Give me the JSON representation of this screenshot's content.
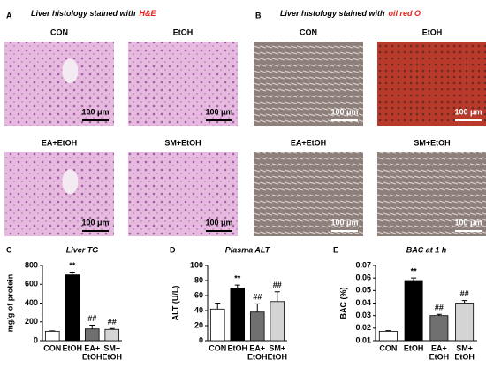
{
  "panels": [
    {
      "letter": "A",
      "title": "Liver histology stained with",
      "stain": "H&E",
      "images": [
        {
          "label": "CON",
          "scale": "100 μm"
        },
        {
          "label": "EtOH",
          "scale": "100 μm"
        },
        {
          "label": "EA+EtOH",
          "scale": "100 μm"
        },
        {
          "label": "SM+EtOH",
          "scale": "100 μm"
        }
      ]
    },
    {
      "letter": "B",
      "title": "Liver histology stained with",
      "stain": "oil red O",
      "images": [
        {
          "label": "CON",
          "scale": "100 μm"
        },
        {
          "label": "EtOH",
          "scale": "100 μm"
        },
        {
          "label": "EA+EtOH",
          "scale": "100 μm"
        },
        {
          "label": "SM+EtOH",
          "scale": "100 μm"
        }
      ]
    }
  ],
  "chart_data": [
    {
      "type": "bar",
      "letter": "C",
      "title": "Liver TG",
      "ylabel": "mg/g of protein",
      "categories": [
        [
          "CON"
        ],
        [
          "EtOH"
        ],
        [
          "EA+",
          "EtOH"
        ],
        [
          "SM+",
          "EtOH"
        ]
      ],
      "values": [
        100,
        700,
        125,
        120
      ],
      "errors": [
        5,
        30,
        40,
        10
      ],
      "annotations": [
        null,
        "**",
        "##",
        "##"
      ],
      "colors": [
        "#ffffff",
        "#000000",
        "#707070",
        "#d4d4d4"
      ],
      "ylim": [
        0,
        800
      ],
      "yticks": [
        0,
        200,
        400,
        600,
        800
      ]
    },
    {
      "type": "bar",
      "letter": "D",
      "title": "Plasma ALT",
      "ylabel": "ALT (U/L)",
      "categories": [
        [
          "CON"
        ],
        [
          "EtOH"
        ],
        [
          "EA+",
          "EtOH"
        ],
        [
          "SM+",
          "EtOH"
        ]
      ],
      "values": [
        42,
        70,
        38,
        52
      ],
      "errors": [
        8,
        4,
        11,
        13
      ],
      "annotations": [
        null,
        "**",
        "##",
        "##"
      ],
      "colors": [
        "#ffffff",
        "#000000",
        "#707070",
        "#d4d4d4"
      ],
      "ylim": [
        0,
        100
      ],
      "yticks": [
        0,
        20,
        40,
        60,
        80,
        100
      ]
    },
    {
      "type": "bar",
      "letter": "E",
      "title": "BAC at 1 h",
      "ylabel": "BAC (%)",
      "categories": [
        [
          "CON"
        ],
        [
          "EtOH"
        ],
        [
          "EA+",
          "EtOH"
        ],
        [
          "SM+",
          "EtOH"
        ]
      ],
      "values": [
        0.0175,
        0.058,
        0.03,
        0.04
      ],
      "errors": [
        0.0005,
        0.002,
        0.001,
        0.002
      ],
      "annotations": [
        null,
        "**",
        "##",
        "##"
      ],
      "colors": [
        "#ffffff",
        "#000000",
        "#707070",
        "#d4d4d4"
      ],
      "ylim": [
        0.01,
        0.07
      ],
      "yticks": [
        0.01,
        0.02,
        0.03,
        0.04,
        0.05,
        0.06,
        0.07
      ]
    }
  ]
}
